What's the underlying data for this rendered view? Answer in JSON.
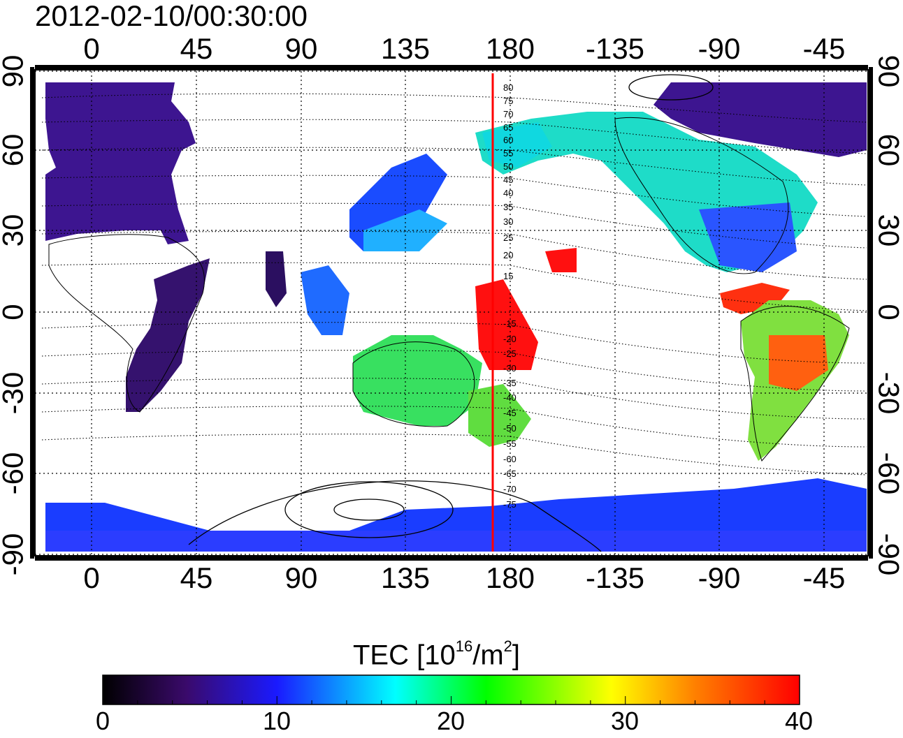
{
  "title": "2012-02-10/00:30:00",
  "map": {
    "lon_ticks": [
      "0",
      "45",
      "90",
      "135",
      "180",
      "-135",
      "-90",
      "-45"
    ],
    "lat_ticks": [
      "90",
      "60",
      "30",
      "0",
      "-30",
      "-60",
      "-90"
    ],
    "meridian_marker_color": "#ff0000",
    "mlat_labels_north": [
      "80",
      "75",
      "70",
      "65",
      "60",
      "55",
      "50",
      "45",
      "40",
      "35",
      "30",
      "25",
      "20",
      "15"
    ],
    "mlat_labels_south": [
      "-15",
      "-20",
      "-25",
      "-30",
      "-35",
      "-40",
      "-45",
      "-50",
      "-55",
      "-60",
      "-65",
      "-70",
      "-75"
    ]
  },
  "colorbar": {
    "label_text": "TEC  [10",
    "label_exp": "16",
    "label_unit": "/m",
    "label_unit_exp": "2",
    "label_close": "]",
    "ticks": [
      "0",
      "10",
      "20",
      "30",
      "40"
    ],
    "range": [
      0,
      40
    ],
    "colors": [
      "#000000",
      "#3a0a6b",
      "#1a1aff",
      "#00ffff",
      "#00ff00",
      "#ffff00",
      "#ff8000",
      "#ff0000"
    ]
  }
}
